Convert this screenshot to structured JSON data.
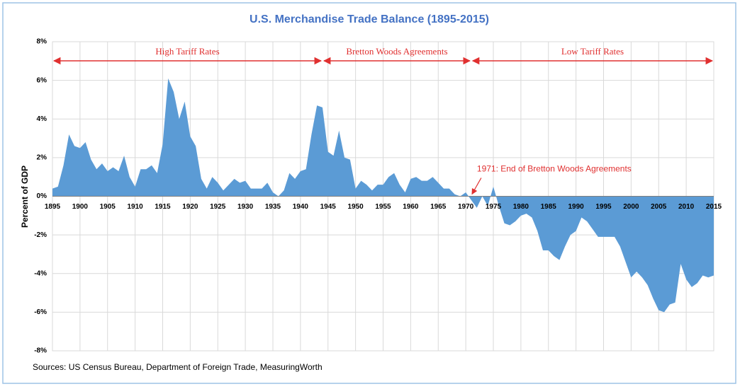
{
  "chart_data": {
    "type": "area",
    "title": "U.S. Merchandise Trade Balance (1895-2015)",
    "y_label": "Percent of GDP",
    "source": "Sources: US Census Bureau, Department of Foreign Trade, MeasuringWorth",
    "color": "#5b9bd5",
    "x": [
      1895,
      1896,
      1897,
      1898,
      1899,
      1900,
      1901,
      1902,
      1903,
      1904,
      1905,
      1906,
      1907,
      1908,
      1909,
      1910,
      1911,
      1912,
      1913,
      1914,
      1915,
      1916,
      1917,
      1918,
      1919,
      1920,
      1921,
      1922,
      1923,
      1924,
      1925,
      1926,
      1927,
      1928,
      1929,
      1930,
      1931,
      1932,
      1933,
      1934,
      1935,
      1936,
      1937,
      1938,
      1939,
      1940,
      1941,
      1942,
      1943,
      1944,
      1945,
      1946,
      1947,
      1948,
      1949,
      1950,
      1951,
      1952,
      1953,
      1954,
      1955,
      1956,
      1957,
      1958,
      1959,
      1960,
      1961,
      1962,
      1963,
      1964,
      1965,
      1966,
      1967,
      1968,
      1969,
      1970,
      1971,
      1972,
      1973,
      1974,
      1975,
      1976,
      1977,
      1978,
      1979,
      1980,
      1981,
      1982,
      1983,
      1984,
      1985,
      1986,
      1987,
      1988,
      1989,
      1990,
      1991,
      1992,
      1993,
      1994,
      1995,
      1996,
      1997,
      1998,
      1999,
      2000,
      2001,
      2002,
      2003,
      2004,
      2005,
      2006,
      2007,
      2008,
      2009,
      2010,
      2011,
      2012,
      2013,
      2014,
      2015
    ],
    "values": [
      0.4,
      0.5,
      1.6,
      3.2,
      2.6,
      2.5,
      2.8,
      1.9,
      1.4,
      1.7,
      1.3,
      1.5,
      1.3,
      2.1,
      1.0,
      0.5,
      1.4,
      1.4,
      1.6,
      1.2,
      2.7,
      6.1,
      5.4,
      4.0,
      4.9,
      3.1,
      2.6,
      0.9,
      0.4,
      1.0,
      0.7,
      0.3,
      0.6,
      0.9,
      0.7,
      0.8,
      0.4,
      0.4,
      0.4,
      0.7,
      0.2,
      0.0,
      0.3,
      1.2,
      0.9,
      1.3,
      1.4,
      3.2,
      4.7,
      4.6,
      2.3,
      2.1,
      3.4,
      2.0,
      1.9,
      0.4,
      0.8,
      0.6,
      0.3,
      0.6,
      0.6,
      1.0,
      1.2,
      0.6,
      0.2,
      0.9,
      1.0,
      0.8,
      0.8,
      1.0,
      0.7,
      0.4,
      0.4,
      0.1,
      0.0,
      0.2,
      -0.2,
      -0.6,
      0.0,
      -0.5,
      0.5,
      -0.5,
      -1.4,
      -1.5,
      -1.3,
      -1.0,
      -0.9,
      -1.1,
      -1.8,
      -2.8,
      -2.8,
      -3.1,
      -3.3,
      -2.6,
      -2.0,
      -1.8,
      -1.1,
      -1.3,
      -1.7,
      -2.1,
      -2.1,
      -2.1,
      -2.1,
      -2.6,
      -3.4,
      -4.2,
      -3.9,
      -4.2,
      -4.6,
      -5.3,
      -5.9,
      -6.0,
      -5.6,
      -5.5,
      -3.5,
      -4.3,
      -4.7,
      -4.5,
      -4.1,
      -4.2,
      -4.1
    ],
    "xlim": [
      1895,
      2015
    ],
    "xticks": [
      1895,
      1900,
      1905,
      1910,
      1915,
      1920,
      1925,
      1930,
      1935,
      1940,
      1945,
      1950,
      1955,
      1960,
      1965,
      1970,
      1975,
      1980,
      1985,
      1990,
      1995,
      2000,
      2005,
      2010,
      2015
    ],
    "ylim": [
      -8,
      8
    ],
    "yticks": [
      {
        "value": -8,
        "label": "-8%"
      },
      {
        "value": -6,
        "label": "-6%"
      },
      {
        "value": -4,
        "label": "-4%"
      },
      {
        "value": -2,
        "label": "-2%"
      },
      {
        "value": 0,
        "label": "0%"
      },
      {
        "value": 2,
        "label": "2%"
      },
      {
        "value": 4,
        "label": "4%"
      },
      {
        "value": 6,
        "label": "6%"
      },
      {
        "value": 8,
        "label": "8%"
      }
    ],
    "grid": true,
    "ranges": [
      {
        "label": "High Tariff Rates",
        "start": 1895,
        "end": 1944
      },
      {
        "label": "Bretton Woods Agreements",
        "start": 1944,
        "end": 1971
      },
      {
        "label": "Low Tariff Rates",
        "start": 1971,
        "end": 2015
      }
    ],
    "callout": {
      "text": "1971: End of Bretton Woods Agreements",
      "x": 1971,
      "y": 0
    }
  }
}
